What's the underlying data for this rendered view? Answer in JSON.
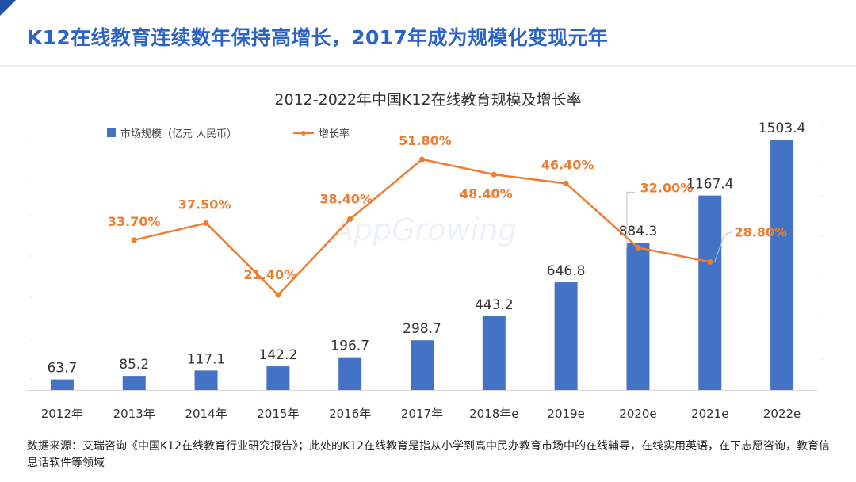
{
  "slide": {
    "title": "K12在线教育连续数年保持高增长，2017年成为规模化变现元年"
  },
  "watermark": "AppGrowing",
  "source": "数据来源：艾瑞咨询《中国K12在线教育行业研究报告》；此处的K12在线教育是指从小学到高中民办教育市场中的在线辅导，在线实用英语，在下志愿咨询，教育信息话软件等领域",
  "colors": {
    "bar": "#4472c4",
    "line": "#ed7d31",
    "title": "#2b63c6"
  },
  "chart_data": {
    "type": "bar",
    "title": "2012-2022年中国K12在线教育规模及增长率",
    "categories": [
      "2012年",
      "2013年",
      "2014年",
      "2015年",
      "2016年",
      "2017年",
      "2018年e",
      "2019e",
      "2020e",
      "2021e",
      "2022e"
    ],
    "series": [
      {
        "name": "市场规模（亿元 人民币）",
        "type": "bar",
        "values": [
          63.7,
          85.2,
          117.1,
          142.2,
          196.7,
          298.7,
          443.2,
          646.8,
          884.3,
          1167.4,
          1503.4
        ],
        "labels": [
          "63.7",
          "85.2",
          "117.1",
          "142.2",
          "196.7",
          "298.7",
          "443.2",
          "646.8",
          "884.3",
          "1167.4",
          "1503.4"
        ]
      },
      {
        "name": "增长率",
        "type": "line",
        "values": [
          null,
          33.7,
          37.5,
          21.4,
          38.4,
          51.8,
          48.4,
          46.4,
          32.0,
          28.8,
          null
        ],
        "labels": [
          "",
          "33.70%",
          "37.50%",
          "21.40%",
          "38.40%",
          "51.80%",
          "48.40%",
          "46.40%",
          "32.00%",
          "28.80%",
          ""
        ]
      }
    ],
    "legend_position": "top-left",
    "grid": false
  }
}
